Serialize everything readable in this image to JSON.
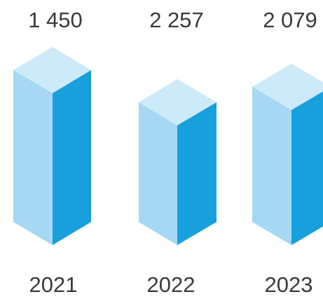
{
  "chart_data": {
    "type": "bar",
    "title": "",
    "xlabel": "",
    "ylabel": "",
    "categories": [
      "2021",
      "2022",
      "2023"
    ],
    "values": [
      1450,
      2257,
      2079
    ],
    "value_labels": [
      "1 450",
      "2 257",
      "2 079"
    ],
    "grid": false,
    "legend": "none"
  },
  "colors": {
    "top": "#cdeaf8",
    "left": "#a6d8f3",
    "right": "#18a0dd",
    "text": "#3a3a3a"
  }
}
